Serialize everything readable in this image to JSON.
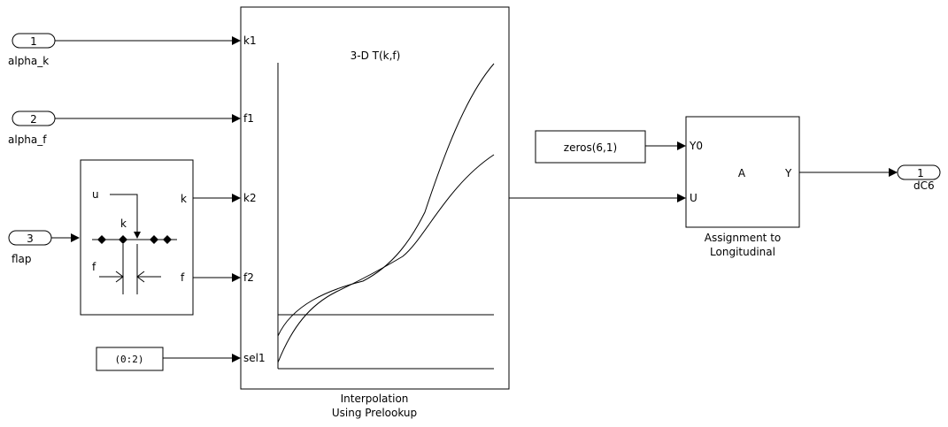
{
  "inports": [
    {
      "number": "1",
      "label": "alpha_k"
    },
    {
      "number": "2",
      "label": "alpha_f"
    },
    {
      "number": "3",
      "label": "flap"
    }
  ],
  "outport": {
    "number": "1",
    "label": "dC6"
  },
  "prelookup": {
    "in": "u",
    "k_top": "k",
    "f_mid": "f",
    "out_k": "k",
    "out_f": "f"
  },
  "constant": {
    "value": "(0:2)"
  },
  "interp": {
    "title": "3-D T(k,f)",
    "ports": [
      "k1",
      "f1",
      "k2",
      "f2",
      "sel1"
    ],
    "caption_line1": "Interpolation",
    "caption_line2": "Using Prelookup"
  },
  "zeros": {
    "value": "zeros(6,1)"
  },
  "assign": {
    "port_y0": "Y0",
    "port_u": "U",
    "center": "A",
    "port_y": "Y",
    "caption_line1": "Assignment to",
    "caption_line2": "Longitudinal"
  }
}
